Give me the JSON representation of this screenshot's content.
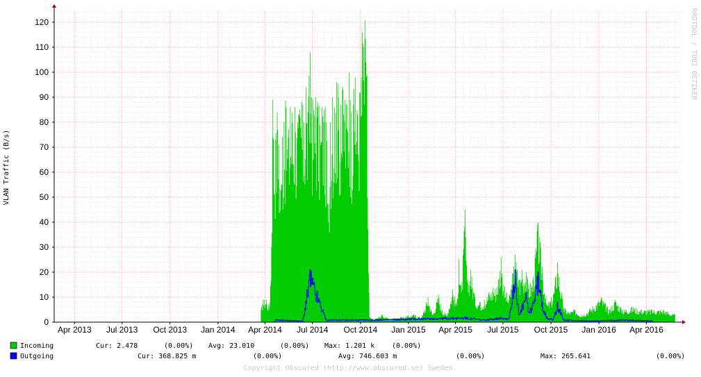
{
  "chart_data": {
    "type": "area",
    "ylabel": "VLAN Traffic (B/s)",
    "side_label": "RRDTOOL / TOBI OETIKER",
    "xlim": [
      "2013-02-21",
      "2016-06-06"
    ],
    "ylim": [
      0,
      125
    ],
    "yticks": [
      0,
      10,
      20,
      30,
      40,
      50,
      60,
      70,
      80,
      90,
      100,
      110,
      120
    ],
    "xticks": [
      {
        "label": "Apr 2013",
        "date": "2013-04-01"
      },
      {
        "label": "Jul 2013",
        "date": "2013-07-01"
      },
      {
        "label": "Oct 2013",
        "date": "2013-10-01"
      },
      {
        "label": "Jan 2014",
        "date": "2014-01-01"
      },
      {
        "label": "Apr 2014",
        "date": "2014-04-01"
      },
      {
        "label": "Jul 2014",
        "date": "2014-07-01"
      },
      {
        "label": "Oct 2014",
        "date": "2014-10-01"
      },
      {
        "label": "Jan 2015",
        "date": "2015-01-01"
      },
      {
        "label": "Apr 2015",
        "date": "2015-04-01"
      },
      {
        "label": "Jul 2015",
        "date": "2015-07-01"
      },
      {
        "label": "Oct 2015",
        "date": "2015-10-01"
      },
      {
        "label": "Jan 2016",
        "date": "2016-01-01"
      },
      {
        "label": "Apr 2016",
        "date": "2016-04-01"
      }
    ],
    "grid": true,
    "legend_position": "bottom-left",
    "series": [
      {
        "name": "Incoming",
        "color": "#00cc00",
        "points": [
          [
            "2014-03-24",
            5
          ],
          [
            "2014-03-28",
            9
          ],
          [
            "2014-04-03",
            9
          ],
          [
            "2014-04-09",
            6
          ],
          [
            "2014-04-13",
            30
          ],
          [
            "2014-04-15",
            89
          ],
          [
            "2014-04-17",
            73
          ],
          [
            "2014-04-21",
            73
          ],
          [
            "2014-04-24",
            84
          ],
          [
            "2014-04-27",
            71
          ],
          [
            "2014-05-02",
            55
          ],
          [
            "2014-05-04",
            74
          ],
          [
            "2014-05-07",
            80
          ],
          [
            "2014-05-11",
            86
          ],
          [
            "2014-05-15",
            74
          ],
          [
            "2014-05-19",
            86
          ],
          [
            "2014-05-23",
            84
          ],
          [
            "2014-05-28",
            86
          ],
          [
            "2014-06-02",
            80
          ],
          [
            "2014-06-06",
            85
          ],
          [
            "2014-06-10",
            88
          ],
          [
            "2014-06-14",
            80
          ],
          [
            "2014-06-18",
            94
          ],
          [
            "2014-06-22",
            84
          ],
          [
            "2014-06-26",
            108
          ],
          [
            "2014-06-29",
            90
          ],
          [
            "2014-07-03",
            85
          ],
          [
            "2014-07-07",
            90
          ],
          [
            "2014-07-11",
            88
          ],
          [
            "2014-07-15",
            79
          ],
          [
            "2014-07-19",
            86
          ],
          [
            "2014-07-23",
            85
          ],
          [
            "2014-07-27",
            80
          ],
          [
            "2014-07-31",
            40
          ],
          [
            "2014-08-04",
            80
          ],
          [
            "2014-08-08",
            90
          ],
          [
            "2014-08-12",
            86
          ],
          [
            "2014-08-16",
            96
          ],
          [
            "2014-08-20",
            90
          ],
          [
            "2014-08-24",
            87
          ],
          [
            "2014-08-28",
            93
          ],
          [
            "2014-09-01",
            89
          ],
          [
            "2014-09-05",
            87
          ],
          [
            "2014-09-09",
            100
          ],
          [
            "2014-09-13",
            84
          ],
          [
            "2014-09-17",
            87
          ],
          [
            "2014-09-21",
            98
          ],
          [
            "2014-09-25",
            83
          ],
          [
            "2014-09-29",
            92
          ],
          [
            "2014-10-02",
            98
          ],
          [
            "2014-10-04",
            116
          ],
          [
            "2014-10-07",
            110
          ],
          [
            "2014-10-09",
            121
          ],
          [
            "2014-10-11",
            104
          ],
          [
            "2014-10-13",
            99
          ],
          [
            "2014-10-15",
            37
          ],
          [
            "2014-10-18",
            2
          ],
          [
            "2014-10-27",
            1
          ],
          [
            "2014-11-11",
            3
          ],
          [
            "2014-11-26",
            1
          ],
          [
            "2014-12-16",
            2
          ],
          [
            "2015-01-10",
            3
          ],
          [
            "2015-01-26",
            2
          ],
          [
            "2015-02-07",
            10
          ],
          [
            "2015-02-16",
            3
          ],
          [
            "2015-02-27",
            11
          ],
          [
            "2015-03-06",
            5
          ],
          [
            "2015-03-15",
            3
          ],
          [
            "2015-03-26",
            13
          ],
          [
            "2015-04-03",
            7
          ],
          [
            "2015-04-07",
            25
          ],
          [
            "2015-04-12",
            12
          ],
          [
            "2015-04-19",
            45
          ],
          [
            "2015-04-23",
            16
          ],
          [
            "2015-04-30",
            21
          ],
          [
            "2015-05-08",
            10
          ],
          [
            "2015-05-17",
            8
          ],
          [
            "2015-05-26",
            9
          ],
          [
            "2015-06-04",
            12
          ],
          [
            "2015-06-12",
            14
          ],
          [
            "2015-06-19",
            14
          ],
          [
            "2015-06-27",
            26
          ],
          [
            "2015-07-02",
            15
          ],
          [
            "2015-07-12",
            9
          ],
          [
            "2015-07-24",
            27
          ],
          [
            "2015-08-01",
            17
          ],
          [
            "2015-08-06",
            21
          ],
          [
            "2015-08-14",
            20
          ],
          [
            "2015-08-19",
            15
          ],
          [
            "2015-08-27",
            17
          ],
          [
            "2015-09-06",
            40
          ],
          [
            "2015-09-14",
            22
          ],
          [
            "2015-09-23",
            7
          ],
          [
            "2015-10-05",
            11
          ],
          [
            "2015-10-13",
            24
          ],
          [
            "2015-10-25",
            6
          ],
          [
            "2015-11-04",
            4
          ],
          [
            "2015-11-15",
            5
          ],
          [
            "2015-11-28",
            3
          ],
          [
            "2015-12-13",
            5
          ],
          [
            "2016-01-05",
            10
          ],
          [
            "2016-01-20",
            5
          ],
          [
            "2016-02-01",
            9
          ],
          [
            "2016-02-15",
            5
          ],
          [
            "2016-03-06",
            6
          ],
          [
            "2016-03-21",
            5
          ],
          [
            "2016-04-11",
            5
          ],
          [
            "2016-05-03",
            5
          ],
          [
            "2016-05-25",
            3
          ]
        ]
      },
      {
        "name": "Outgoing",
        "color": "#0000ff",
        "points": [
          [
            "2014-04-21",
            1
          ],
          [
            "2014-06-12",
            0.5
          ],
          [
            "2014-06-26",
            21
          ],
          [
            "2014-07-27",
            1
          ],
          [
            "2014-08-16",
            1
          ],
          [
            "2014-10-09",
            1
          ],
          [
            "2015-04-19",
            2
          ],
          [
            "2015-05-26",
            1
          ],
          [
            "2015-06-27",
            2
          ],
          [
            "2015-07-12",
            1.5
          ],
          [
            "2015-07-24",
            21
          ],
          [
            "2015-08-01",
            3
          ],
          [
            "2015-08-14",
            12
          ],
          [
            "2015-08-19",
            4
          ],
          [
            "2015-08-27",
            8
          ],
          [
            "2015-09-06",
            20
          ],
          [
            "2015-09-14",
            8
          ],
          [
            "2015-09-23",
            2
          ],
          [
            "2015-10-05",
            1
          ],
          [
            "2015-10-13",
            8
          ],
          [
            "2015-10-25",
            1
          ],
          [
            "2015-12-13",
            0.5
          ],
          [
            "2016-02-15",
            1
          ],
          [
            "2016-04-11",
            0.6
          ]
        ]
      }
    ],
    "legend": [
      {
        "name": "Incoming",
        "color": "#00cc00",
        "cur": "Cur: 2.478",
        "cur_pct": "(0.00%)",
        "avg": "Avg: 23.010",
        "avg_pct": "(0.00%)",
        "max": "Max: 1.201 k",
        "max_pct": "(0.00%)"
      },
      {
        "name": "Outgoing",
        "color": "#0000ff",
        "cur": "Cur: 368.825 m",
        "cur_pct": "(0.00%)",
        "avg": "Avg: 746.603 m",
        "avg_pct": "(0.00%)",
        "max": "Max: 265.641",
        "max_pct": "(0.00%)"
      }
    ],
    "footer": "Copyright Obscured (http://www.obscured.se) Sweden."
  }
}
